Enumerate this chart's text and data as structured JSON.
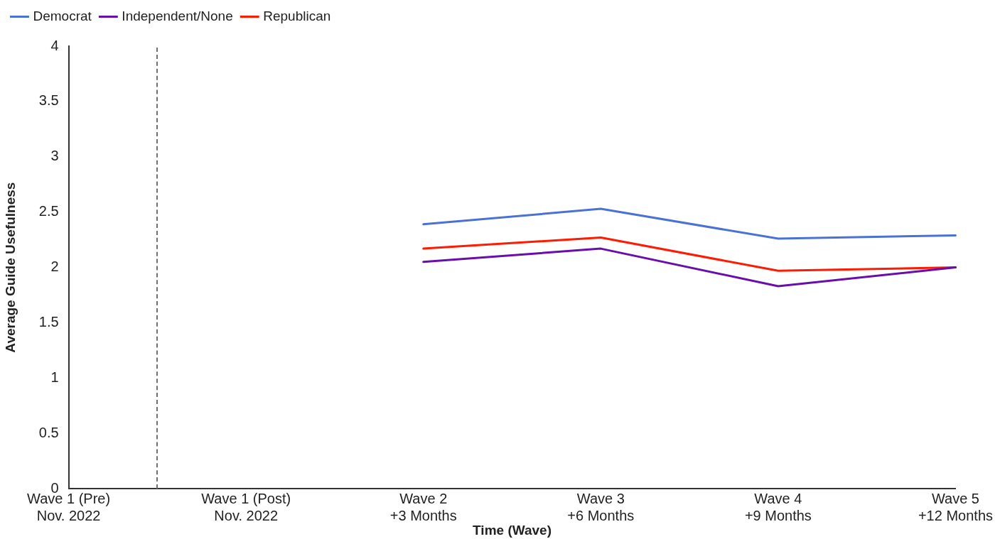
{
  "chart_data": {
    "type": "line",
    "xlabel": "Time (Wave)",
    "ylabel": "Average Guide Usefulness",
    "categories": [
      "Wave 1 (Pre)\nNov. 2022",
      "Wave 1 (Post)\nNov. 2022",
      "Wave 2\n+3 Months",
      "Wave 3\n+6 Months",
      "Wave 4\n+9 Months",
      "Wave 5\n+12 Months"
    ],
    "series": [
      {
        "name": "Democrat",
        "color": "#4a72d6",
        "values": [
          null,
          null,
          2.39,
          2.53,
          2.26,
          2.29
        ]
      },
      {
        "name": "Independent/None",
        "color": "#6a0dad",
        "values": [
          null,
          null,
          2.05,
          2.17,
          1.83,
          2.0
        ]
      },
      {
        "name": "Republican",
        "color": "#ff1a00",
        "values": [
          null,
          null,
          2.17,
          2.27,
          1.97,
          2.0
        ]
      }
    ],
    "ylim": [
      0,
      4
    ],
    "yticks": [
      0,
      0.5,
      1,
      1.5,
      2,
      2.5,
      3,
      3.5,
      4
    ],
    "grid": false,
    "legend": "top left",
    "marker": "none",
    "line_style": "solid"
  }
}
